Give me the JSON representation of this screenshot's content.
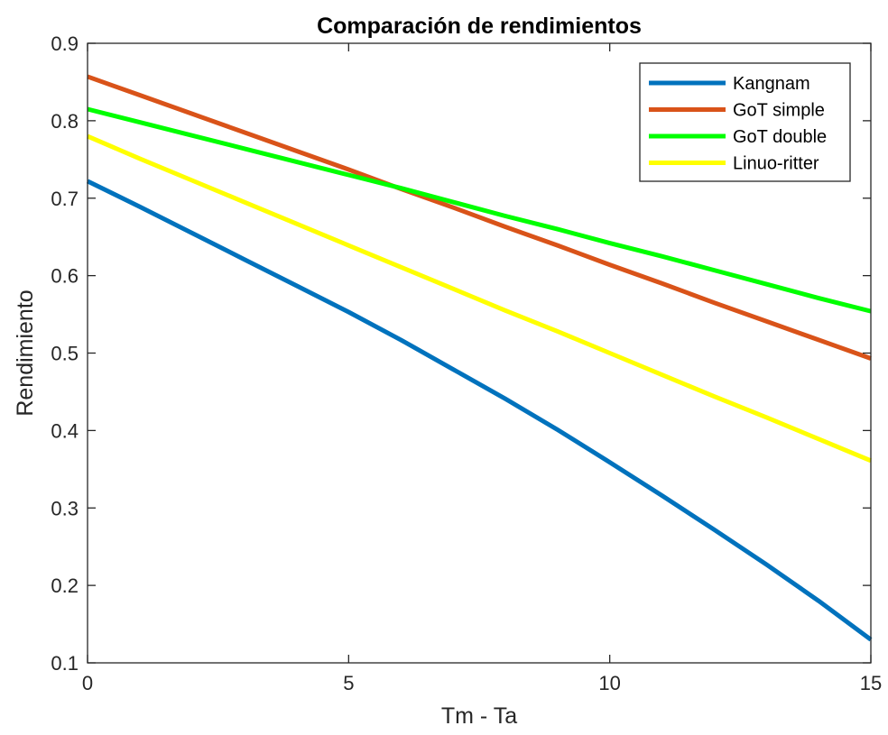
{
  "chart_data": {
    "type": "line",
    "title": "Comparación de rendimientos",
    "xlabel": "Tm - Ta",
    "ylabel": "Rendimiento",
    "xlim": [
      0,
      15
    ],
    "ylim": [
      0.1,
      0.9
    ],
    "xticks": [
      0,
      5,
      10,
      15
    ],
    "yticks": [
      0.1,
      0.2,
      0.3,
      0.4,
      0.5,
      0.6,
      0.7,
      0.8,
      0.9
    ],
    "grid": false,
    "legend_position": "top-right",
    "x": [
      0,
      1,
      2,
      3,
      4,
      5,
      6,
      7,
      8,
      9,
      10,
      11,
      12,
      13,
      14,
      15
    ],
    "series": [
      {
        "name": "Kangnam",
        "color": "#0072BD",
        "values": [
          0.722,
          0.689,
          0.655,
          0.621,
          0.587,
          0.553,
          0.517,
          0.479,
          0.441,
          0.401,
          0.359,
          0.316,
          0.272,
          0.227,
          0.18,
          0.13
        ]
      },
      {
        "name": "GoT simple",
        "color": "#D95319",
        "values": [
          0.857,
          0.833,
          0.809,
          0.785,
          0.761,
          0.737,
          0.712,
          0.688,
          0.663,
          0.639,
          0.614,
          0.59,
          0.565,
          0.541,
          0.517,
          0.493
        ]
      },
      {
        "name": "GoT double",
        "color": "#00FF00",
        "values": [
          0.815,
          0.798,
          0.781,
          0.764,
          0.747,
          0.73,
          0.713,
          0.695,
          0.677,
          0.66,
          0.642,
          0.625,
          0.607,
          0.589,
          0.571,
          0.554
        ]
      },
      {
        "name": "Linuo-ritter",
        "color": "#FFFF00",
        "values": [
          0.78,
          0.751,
          0.723,
          0.695,
          0.667,
          0.639,
          0.611,
          0.583,
          0.555,
          0.528,
          0.5,
          0.472,
          0.444,
          0.417,
          0.389,
          0.361
        ]
      }
    ]
  }
}
